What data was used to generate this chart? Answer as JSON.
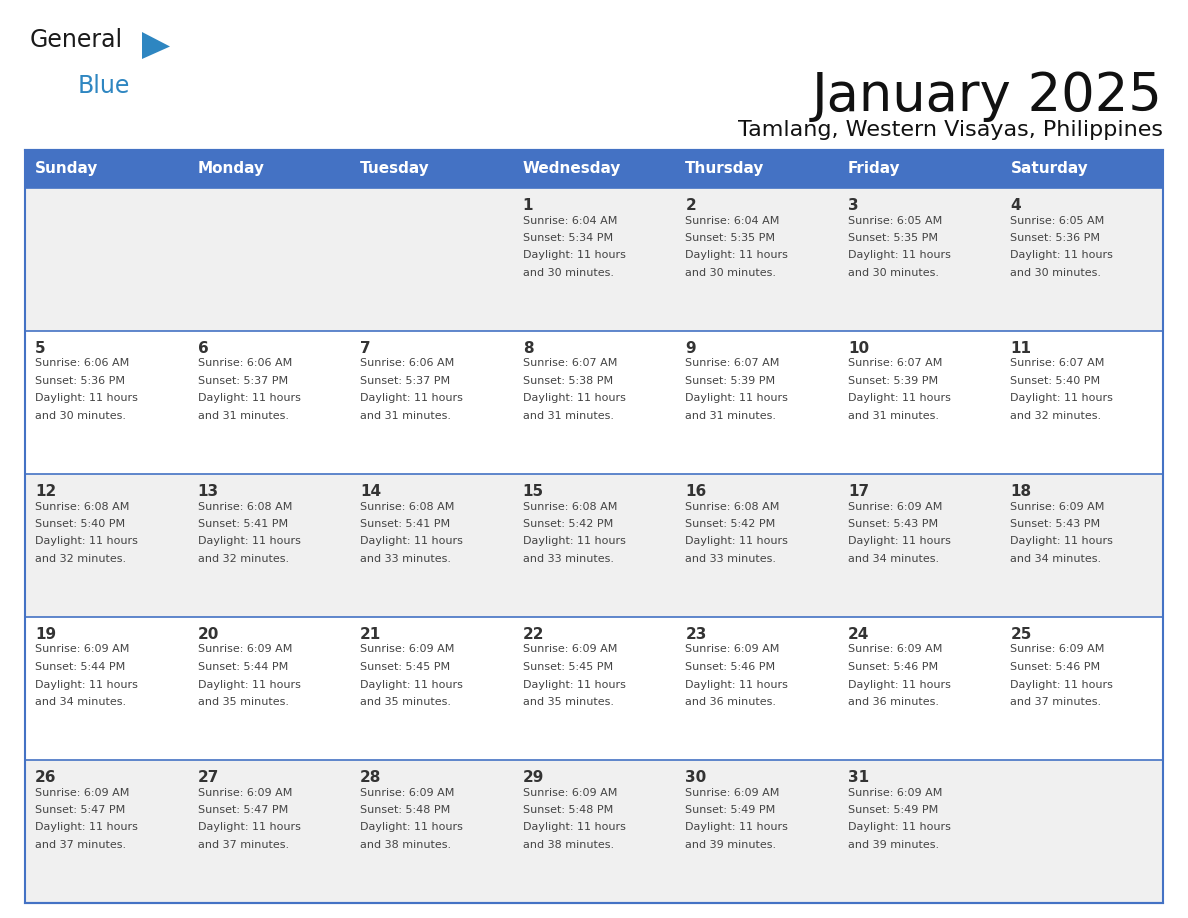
{
  "title": "January 2025",
  "subtitle": "Tamlang, Western Visayas, Philippines",
  "days_of_week": [
    "Sunday",
    "Monday",
    "Tuesday",
    "Wednesday",
    "Thursday",
    "Friday",
    "Saturday"
  ],
  "header_bg": "#4472C4",
  "header_text": "#FFFFFF",
  "row_bg_odd": "#F0F0F0",
  "row_bg_even": "#FFFFFF",
  "cell_border": "#4472C4",
  "day_num_color": "#333333",
  "text_color": "#444444",
  "logo_general_color": "#1a1a1a",
  "logo_blue_color": "#2E86C1",
  "calendar": [
    [
      null,
      null,
      null,
      {
        "day": 1,
        "sunrise": "6:04 AM",
        "sunset": "5:34 PM",
        "daylight_line1": "Daylight: 11 hours",
        "daylight_line2": "and 30 minutes."
      },
      {
        "day": 2,
        "sunrise": "6:04 AM",
        "sunset": "5:35 PM",
        "daylight_line1": "Daylight: 11 hours",
        "daylight_line2": "and 30 minutes."
      },
      {
        "day": 3,
        "sunrise": "6:05 AM",
        "sunset": "5:35 PM",
        "daylight_line1": "Daylight: 11 hours",
        "daylight_line2": "and 30 minutes."
      },
      {
        "day": 4,
        "sunrise": "6:05 AM",
        "sunset": "5:36 PM",
        "daylight_line1": "Daylight: 11 hours",
        "daylight_line2": "and 30 minutes."
      }
    ],
    [
      {
        "day": 5,
        "sunrise": "6:06 AM",
        "sunset": "5:36 PM",
        "daylight_line1": "Daylight: 11 hours",
        "daylight_line2": "and 30 minutes."
      },
      {
        "day": 6,
        "sunrise": "6:06 AM",
        "sunset": "5:37 PM",
        "daylight_line1": "Daylight: 11 hours",
        "daylight_line2": "and 31 minutes."
      },
      {
        "day": 7,
        "sunrise": "6:06 AM",
        "sunset": "5:37 PM",
        "daylight_line1": "Daylight: 11 hours",
        "daylight_line2": "and 31 minutes."
      },
      {
        "day": 8,
        "sunrise": "6:07 AM",
        "sunset": "5:38 PM",
        "daylight_line1": "Daylight: 11 hours",
        "daylight_line2": "and 31 minutes."
      },
      {
        "day": 9,
        "sunrise": "6:07 AM",
        "sunset": "5:39 PM",
        "daylight_line1": "Daylight: 11 hours",
        "daylight_line2": "and 31 minutes."
      },
      {
        "day": 10,
        "sunrise": "6:07 AM",
        "sunset": "5:39 PM",
        "daylight_line1": "Daylight: 11 hours",
        "daylight_line2": "and 31 minutes."
      },
      {
        "day": 11,
        "sunrise": "6:07 AM",
        "sunset": "5:40 PM",
        "daylight_line1": "Daylight: 11 hours",
        "daylight_line2": "and 32 minutes."
      }
    ],
    [
      {
        "day": 12,
        "sunrise": "6:08 AM",
        "sunset": "5:40 PM",
        "daylight_line1": "Daylight: 11 hours",
        "daylight_line2": "and 32 minutes."
      },
      {
        "day": 13,
        "sunrise": "6:08 AM",
        "sunset": "5:41 PM",
        "daylight_line1": "Daylight: 11 hours",
        "daylight_line2": "and 32 minutes."
      },
      {
        "day": 14,
        "sunrise": "6:08 AM",
        "sunset": "5:41 PM",
        "daylight_line1": "Daylight: 11 hours",
        "daylight_line2": "and 33 minutes."
      },
      {
        "day": 15,
        "sunrise": "6:08 AM",
        "sunset": "5:42 PM",
        "daylight_line1": "Daylight: 11 hours",
        "daylight_line2": "and 33 minutes."
      },
      {
        "day": 16,
        "sunrise": "6:08 AM",
        "sunset": "5:42 PM",
        "daylight_line1": "Daylight: 11 hours",
        "daylight_line2": "and 33 minutes."
      },
      {
        "day": 17,
        "sunrise": "6:09 AM",
        "sunset": "5:43 PM",
        "daylight_line1": "Daylight: 11 hours",
        "daylight_line2": "and 34 minutes."
      },
      {
        "day": 18,
        "sunrise": "6:09 AM",
        "sunset": "5:43 PM",
        "daylight_line1": "Daylight: 11 hours",
        "daylight_line2": "and 34 minutes."
      }
    ],
    [
      {
        "day": 19,
        "sunrise": "6:09 AM",
        "sunset": "5:44 PM",
        "daylight_line1": "Daylight: 11 hours",
        "daylight_line2": "and 34 minutes."
      },
      {
        "day": 20,
        "sunrise": "6:09 AM",
        "sunset": "5:44 PM",
        "daylight_line1": "Daylight: 11 hours",
        "daylight_line2": "and 35 minutes."
      },
      {
        "day": 21,
        "sunrise": "6:09 AM",
        "sunset": "5:45 PM",
        "daylight_line1": "Daylight: 11 hours",
        "daylight_line2": "and 35 minutes."
      },
      {
        "day": 22,
        "sunrise": "6:09 AM",
        "sunset": "5:45 PM",
        "daylight_line1": "Daylight: 11 hours",
        "daylight_line2": "and 35 minutes."
      },
      {
        "day": 23,
        "sunrise": "6:09 AM",
        "sunset": "5:46 PM",
        "daylight_line1": "Daylight: 11 hours",
        "daylight_line2": "and 36 minutes."
      },
      {
        "day": 24,
        "sunrise": "6:09 AM",
        "sunset": "5:46 PM",
        "daylight_line1": "Daylight: 11 hours",
        "daylight_line2": "and 36 minutes."
      },
      {
        "day": 25,
        "sunrise": "6:09 AM",
        "sunset": "5:46 PM",
        "daylight_line1": "Daylight: 11 hours",
        "daylight_line2": "and 37 minutes."
      }
    ],
    [
      {
        "day": 26,
        "sunrise": "6:09 AM",
        "sunset": "5:47 PM",
        "daylight_line1": "Daylight: 11 hours",
        "daylight_line2": "and 37 minutes."
      },
      {
        "day": 27,
        "sunrise": "6:09 AM",
        "sunset": "5:47 PM",
        "daylight_line1": "Daylight: 11 hours",
        "daylight_line2": "and 37 minutes."
      },
      {
        "day": 28,
        "sunrise": "6:09 AM",
        "sunset": "5:48 PM",
        "daylight_line1": "Daylight: 11 hours",
        "daylight_line2": "and 38 minutes."
      },
      {
        "day": 29,
        "sunrise": "6:09 AM",
        "sunset": "5:48 PM",
        "daylight_line1": "Daylight: 11 hours",
        "daylight_line2": "and 38 minutes."
      },
      {
        "day": 30,
        "sunrise": "6:09 AM",
        "sunset": "5:49 PM",
        "daylight_line1": "Daylight: 11 hours",
        "daylight_line2": "and 39 minutes."
      },
      {
        "day": 31,
        "sunrise": "6:09 AM",
        "sunset": "5:49 PM",
        "daylight_line1": "Daylight: 11 hours",
        "daylight_line2": "and 39 minutes."
      },
      null
    ]
  ],
  "num_rows": 5,
  "num_cols": 7,
  "figsize": [
    11.88,
    9.18
  ],
  "dpi": 100
}
